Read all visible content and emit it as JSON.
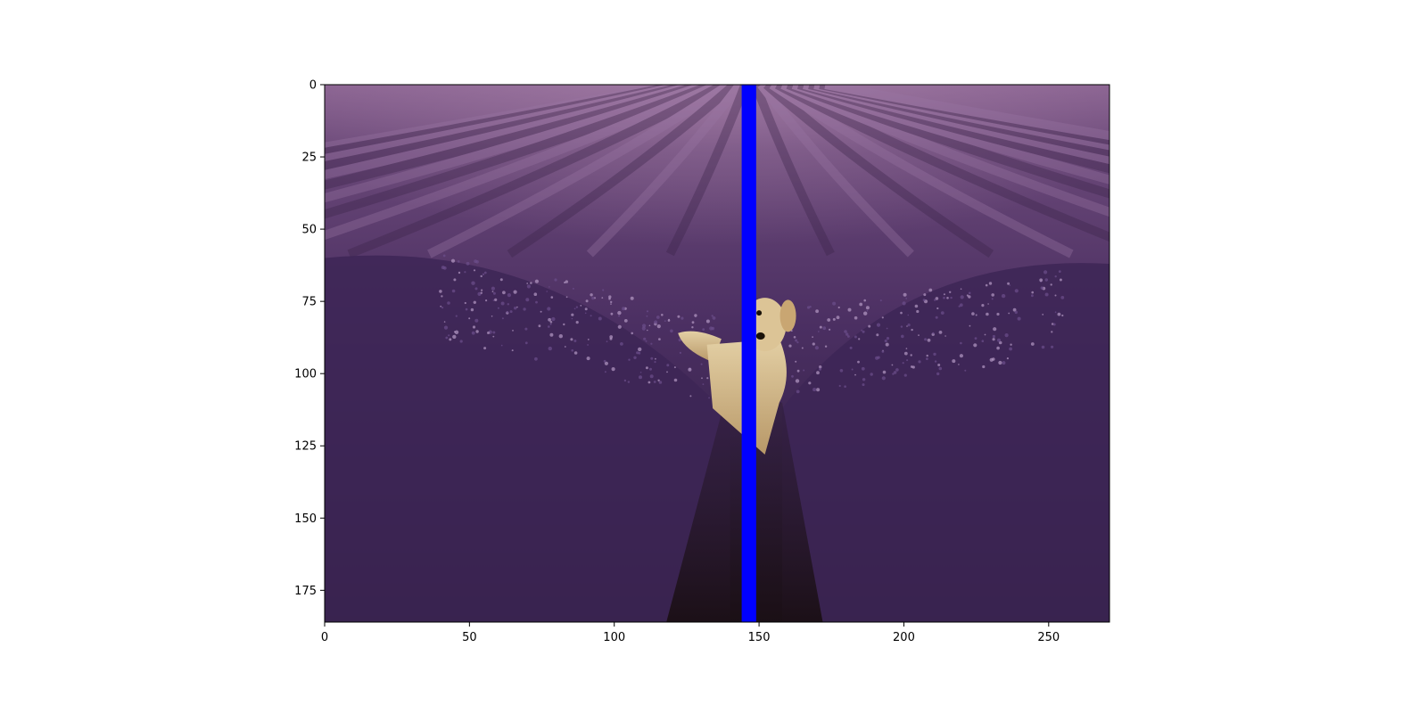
{
  "x_axis": {
    "range": [
      0,
      271
    ],
    "ticks": [
      0,
      50,
      100,
      150,
      200,
      250
    ],
    "tick_labels": [
      "0",
      "50",
      "100",
      "150",
      "200",
      "250"
    ]
  },
  "y_axis": {
    "range": [
      0,
      186
    ],
    "inverted": true,
    "ticks": [
      0,
      25,
      50,
      75,
      100,
      125,
      150,
      175
    ],
    "tick_labels": [
      "0",
      "25",
      "50",
      "75",
      "100",
      "125",
      "150",
      "175"
    ]
  },
  "overlay_band": {
    "x_start": 144,
    "x_end": 149,
    "color": "#0000ff"
  },
  "image": {
    "subject": "golden retriever in a lavender field",
    "colors": {
      "sky": "#6e4d7a",
      "field": "#3a2548",
      "dark": "#1f1220",
      "dog": "#d2b98c"
    }
  }
}
